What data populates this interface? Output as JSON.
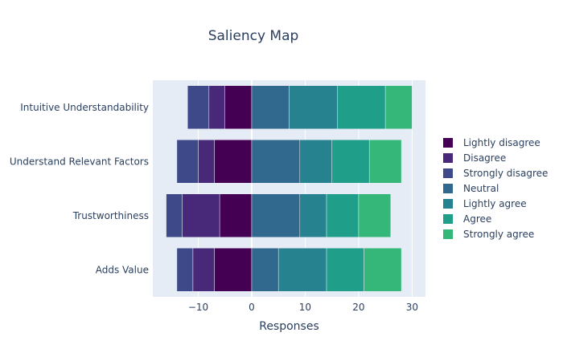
{
  "chart_data": {
    "type": "bar",
    "orientation": "horizontal",
    "barmode": "relative",
    "title": "Saliency Map",
    "xlabel": "Responses",
    "ylabel": "",
    "xlim": [
      -18.5,
      32.5
    ],
    "x_ticks": [
      -10,
      0,
      10,
      20,
      30
    ],
    "x_tick_labels": [
      "−10",
      "0",
      "10",
      "20",
      "30"
    ],
    "grid": true,
    "legend_position": "right",
    "categories": [
      "Adds Value",
      "Trustworthiness",
      "Understand Relevant Factors",
      "Intuitive Understandability"
    ],
    "series": [
      {
        "name": "Lightly disagree",
        "color": "#440154",
        "values": [
          -7,
          -6,
          -7,
          -5
        ]
      },
      {
        "name": "Disagree",
        "color": "#482878",
        "values": [
          -4,
          -7,
          -3,
          -3
        ]
      },
      {
        "name": "Strongly disagree",
        "color": "#3e4989",
        "values": [
          -3,
          -3,
          -4,
          -4
        ]
      },
      {
        "name": "Neutral",
        "color": "#31688e",
        "values": [
          5,
          9,
          9,
          7
        ]
      },
      {
        "name": "Lightly agree",
        "color": "#26828e",
        "values": [
          9,
          5,
          6,
          9
        ]
      },
      {
        "name": "Agree",
        "color": "#1f9e89",
        "values": [
          7,
          6,
          7,
          9
        ]
      },
      {
        "name": "Strongly agree",
        "color": "#35b779",
        "values": [
          7,
          6,
          6,
          5
        ]
      }
    ]
  },
  "style": {
    "plot_background": "#e5ecf6",
    "grid_color": "#ffffff",
    "bar_edge_color": "#e5ecf6",
    "text_color": "#2a3f5f"
  }
}
